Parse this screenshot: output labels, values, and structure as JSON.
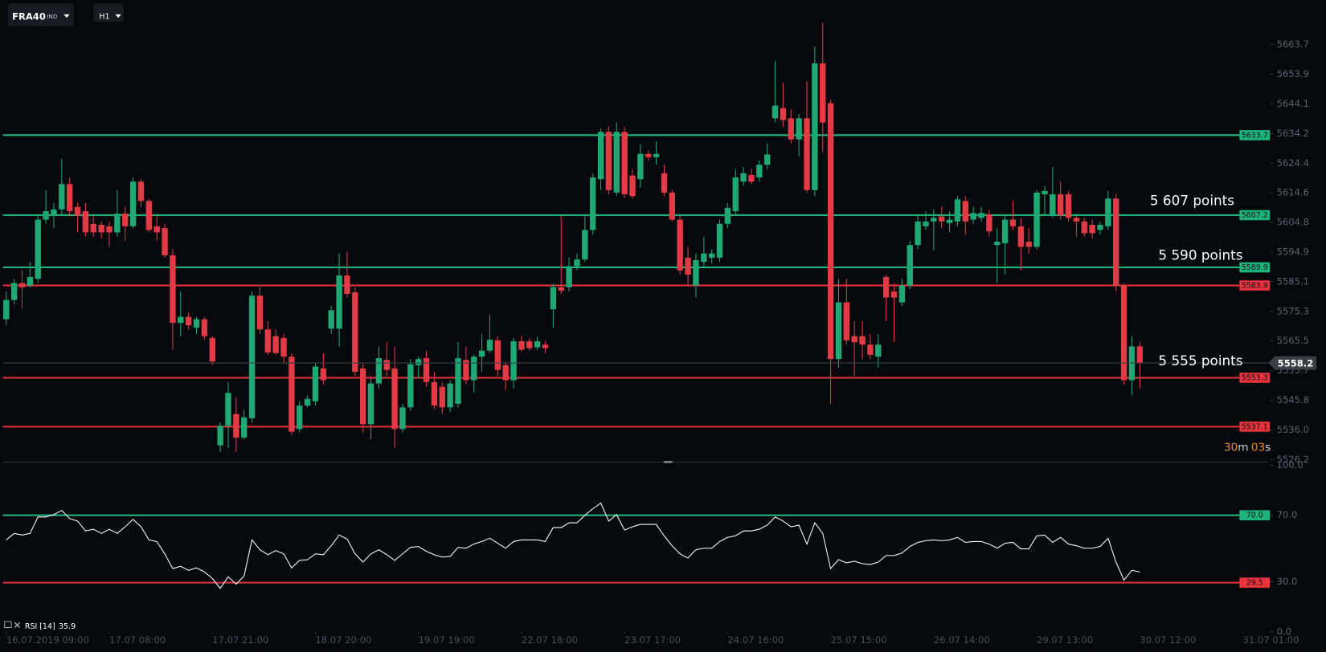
{
  "toolbar": {
    "symbol": "FRA40",
    "market": "IND",
    "timeframe": "H1"
  },
  "chart_data": [
    {
      "type": "candlestick",
      "up_color": "#1fa774",
      "down_color": "#e23b45",
      "xlim": [
        -0.75,
        159.2
      ],
      "xticks": [
        {
          "value": 0,
          "label": "16.07.2019 09:00"
        },
        {
          "value": 13,
          "label": "17.07 08:00"
        },
        {
          "value": 26,
          "label": "17.07 21:00"
        },
        {
          "value": 39,
          "label": "18.07 20:00"
        },
        {
          "value": 52,
          "label": "19.07 19:00"
        },
        {
          "value": 65,
          "label": "22.07 18:00"
        },
        {
          "value": 78,
          "label": "23.07 17:00"
        },
        {
          "value": 91,
          "label": "24.07 16:00"
        },
        {
          "value": 104,
          "label": "25.07 15:00"
        },
        {
          "value": 117,
          "label": "26.07 14:00"
        },
        {
          "value": 130,
          "label": "29.07 13:00"
        },
        {
          "value": 143,
          "label": "30.07 12:00"
        },
        {
          "value": 156,
          "label": "31.07 01:00"
        }
      ],
      "ylim": [
        5525.4,
        5678.5
      ],
      "yticks": [
        5663.7,
        5653.9,
        5644.1,
        5634.2,
        5624.4,
        5614.6,
        5604.8,
        5594.9,
        5585.1,
        5575.3,
        5565.5,
        5555.7,
        5545.8,
        {
          "value": 5536,
          "label": "5536.0"
        },
        5526.2
      ],
      "levels": [
        {
          "value": 5633.7,
          "color": "#1db37a"
        },
        {
          "value": 5607.2,
          "color": "#1db37a"
        },
        {
          "value": 5589.9,
          "color": "#1db37a"
        },
        {
          "value": 5583.9,
          "color": "#e8333d"
        },
        {
          "value": 5553.3,
          "color": "#e8333d"
        },
        {
          "value": 5537.1,
          "color": "#e8333d"
        }
      ],
      "annotations": [
        "5 607 points",
        "5 590 points",
        "5 555 points"
      ],
      "countdown": [
        "30",
        "m",
        "03",
        "s"
      ],
      "candles": [
        [
          5572.7,
          5581.9,
          5570.7,
          5579.1
        ],
        [
          5579.1,
          5586.1,
          5577.7,
          5584.7
        ],
        [
          5584.7,
          5588.9,
          5576.3,
          5583.3
        ],
        [
          5583.9,
          5591.7,
          5583.3,
          5586.7
        ],
        [
          5586.1,
          5607.1,
          5584.7,
          5605.7
        ],
        [
          5605.7,
          5615.5,
          5604.3,
          5608.5
        ],
        [
          5607.1,
          5611.3,
          5602.9,
          5609.1
        ],
        [
          5609.1,
          5625.9,
          5607.1,
          5617.5
        ],
        [
          5617.5,
          5619.7,
          5607.1,
          5608.5
        ],
        [
          5609.9,
          5611.3,
          5601.5,
          5607.1
        ],
        [
          5608.5,
          5611.3,
          5600.1,
          5601.5
        ],
        [
          5604.3,
          5607.1,
          5600.1,
          5601.5
        ],
        [
          5604.0,
          5605.1,
          5599.5,
          5601.5
        ],
        [
          5603.5,
          5605.1,
          5596.7,
          5601.5
        ],
        [
          5601.5,
          5615.5,
          5600.1,
          5607.7
        ],
        [
          5607.7,
          5609.9,
          5598.7,
          5603.5
        ],
        [
          5603.5,
          5619.7,
          5602.9,
          5618.3
        ],
        [
          5618.3,
          5619.1,
          5609.9,
          5611.9
        ],
        [
          5611.9,
          5612.7,
          5601.5,
          5602.3
        ],
        [
          5603.5,
          5607.1,
          5598.7,
          5601.5
        ],
        [
          5602.9,
          5604.3,
          5593.1,
          5593.9
        ],
        [
          5593.9,
          5595.9,
          5562.6,
          5571.5
        ],
        [
          5571.5,
          5581.9,
          5567.1,
          5573.5
        ],
        [
          5573.5,
          5574.9,
          5569.3,
          5570.7
        ],
        [
          5569.9,
          5573.5,
          5567.9,
          5572.7
        ],
        [
          5572.7,
          5573.5,
          5565.9,
          5567.1
        ],
        [
          5566.5,
          5567.1,
          5557.5,
          5558.7
        ],
        [
          5530.9,
          5538.5,
          5528.7,
          5537.4
        ],
        [
          5537.4,
          5551.9,
          5530.1,
          5548.3
        ],
        [
          5541.3,
          5546.9,
          5528.7,
          5533.5
        ],
        [
          5533.5,
          5542.7,
          5532.9,
          5540.2
        ],
        [
          5539.9,
          5581.9,
          5538.5,
          5580.5
        ],
        [
          5580.5,
          5583.3,
          5567.9,
          5569.3
        ],
        [
          5569.3,
          5572.1,
          5560.9,
          5561.7
        ],
        [
          5567.1,
          5569.3,
          5560.9,
          5561.5
        ],
        [
          5566.5,
          5567.9,
          5558.1,
          5560.3
        ],
        [
          5560.3,
          5561.5,
          5534.3,
          5535.4
        ],
        [
          5536.3,
          5545.5,
          5535.1,
          5544.1
        ],
        [
          5544.1,
          5547.5,
          5543.5,
          5546.3
        ],
        [
          5545.5,
          5558.1,
          5544.1,
          5557.0
        ],
        [
          5556.4,
          5561.5,
          5551.1,
          5552.5
        ],
        [
          5569.6,
          5577.1,
          5567.9,
          5575.7
        ],
        [
          5569.6,
          5594.5,
          5563.7,
          5587.2
        ],
        [
          5587.2,
          5595.1,
          5579.9,
          5581.1
        ],
        [
          5581.6,
          5583.3,
          5553.9,
          5555.3
        ],
        [
          5556.4,
          5558.1,
          5535.1,
          5537.9
        ],
        [
          5537.9,
          5553.9,
          5532.9,
          5551.4
        ],
        [
          5551.4,
          5563.7,
          5549.7,
          5559.8
        ],
        [
          5559.2,
          5565.1,
          5553.9,
          5555.9
        ],
        [
          5556.4,
          5563.7,
          5530.1,
          5536.3
        ],
        [
          5536.3,
          5544.7,
          5535.1,
          5543.5
        ],
        [
          5543.5,
          5559.5,
          5542.4,
          5557.8
        ],
        [
          5557.5,
          5560.3,
          5553.1,
          5559.5
        ],
        [
          5559.8,
          5562.3,
          5550.3,
          5551.9
        ],
        [
          5551.9,
          5555.3,
          5543.0,
          5544.1
        ],
        [
          5550.3,
          5551.9,
          5541.3,
          5543.5
        ],
        [
          5543.5,
          5552.5,
          5541.9,
          5551.4
        ],
        [
          5544.7,
          5565.1,
          5543.5,
          5559.8
        ],
        [
          5559.2,
          5563.7,
          5551.1,
          5552.5
        ],
        [
          5552.5,
          5560.9,
          5548.3,
          5560.3
        ],
        [
          5560.3,
          5567.9,
          5555.3,
          5562.3
        ],
        [
          5562.3,
          5574.3,
          5561.5,
          5565.9
        ],
        [
          5565.7,
          5567.1,
          5553.9,
          5555.9
        ],
        [
          5557.5,
          5558.7,
          5549.1,
          5552.5
        ],
        [
          5552.5,
          5566.5,
          5549.7,
          5565.4
        ],
        [
          5565.4,
          5567.1,
          5562.0,
          5562.6
        ],
        [
          5565.4,
          5566.5,
          5562.3,
          5563.1
        ],
        [
          5563.4,
          5567.1,
          5562.6,
          5565.4
        ],
        [
          5564.3,
          5565.4,
          5561.5,
          5563.1
        ],
        [
          5576.0,
          5584.4,
          5569.9,
          5583.3
        ],
        [
          5583.3,
          5607.1,
          5581.1,
          5582.2
        ],
        [
          5583.3,
          5593.1,
          5581.9,
          5590.3
        ],
        [
          5590.3,
          5594.5,
          5588.9,
          5592.5
        ],
        [
          5592.5,
          5607.1,
          5591.7,
          5602.3
        ],
        [
          5602.3,
          5621.1,
          5600.7,
          5619.7
        ],
        [
          5619.1,
          5635.9,
          5615.5,
          5634.8
        ],
        [
          5634.8,
          5636.5,
          5614.1,
          5615.5
        ],
        [
          5614.7,
          5637.9,
          5613.5,
          5634.8
        ],
        [
          5634.8,
          5636.5,
          5613.0,
          5614.1
        ],
        [
          5620.3,
          5622.5,
          5612.7,
          5613.5
        ],
        [
          5619.1,
          5630.9,
          5616.3,
          5627.5
        ],
        [
          5627.5,
          5628.7,
          5625.3,
          5626.4
        ],
        [
          5626.4,
          5631.5,
          5623.9,
          5627.5
        ],
        [
          5621.1,
          5623.9,
          5613.5,
          5614.7
        ],
        [
          5614.7,
          5615.5,
          5605.1,
          5605.7
        ],
        [
          5605.7,
          5607.1,
          5587.5,
          5588.9
        ],
        [
          5593.1,
          5596.7,
          5583.9,
          5587.5
        ],
        [
          5583.9,
          5594.5,
          5579.9,
          5592.3
        ],
        [
          5591.7,
          5600.1,
          5590.3,
          5594.5
        ],
        [
          5593.1,
          5595.9,
          5591.1,
          5594.5
        ],
        [
          5593.1,
          5605.7,
          5591.7,
          5604.3
        ],
        [
          5604.3,
          5611.3,
          5602.9,
          5609.6
        ],
        [
          5608.5,
          5622.5,
          5607.1,
          5619.7
        ],
        [
          5618.3,
          5623.1,
          5616.9,
          5621.1
        ],
        [
          5620.5,
          5622.5,
          5617.5,
          5618.3
        ],
        [
          5619.7,
          5625.3,
          5618.3,
          5623.9
        ],
        [
          5623.9,
          5630.9,
          5622.5,
          5627.3
        ],
        [
          5639.3,
          5658.3,
          5637.9,
          5643.5
        ],
        [
          5642.7,
          5651.1,
          5636.5,
          5638.7
        ],
        [
          5639.3,
          5642.1,
          5630.9,
          5632.3
        ],
        [
          5632.3,
          5640.7,
          5626.7,
          5639.3
        ],
        [
          5639.3,
          5651.6,
          5614.7,
          5615.5
        ],
        [
          5615.5,
          5663.1,
          5613.5,
          5657.5
        ],
        [
          5657.5,
          5670.9,
          5628.1,
          5637.9
        ],
        [
          5644.3,
          5645.5,
          5544.7,
          5559.5
        ],
        [
          5559.5,
          5586.1,
          5556.7,
          5578.3
        ],
        [
          5578.3,
          5586.1,
          5564.3,
          5565.7
        ],
        [
          5567.1,
          5572.1,
          5553.9,
          5565.1
        ],
        [
          5567.1,
          5572.1,
          5559.5,
          5564.3
        ],
        [
          5564.3,
          5567.9,
          5559.5,
          5560.9
        ],
        [
          5560.3,
          5567.9,
          5556.7,
          5564.3
        ],
        [
          5586.7,
          5587.5,
          5572.1,
          5579.9
        ],
        [
          5581.9,
          5584.7,
          5565.1,
          5579.9
        ],
        [
          5578.3,
          5586.1,
          5577.1,
          5583.9
        ],
        [
          5583.9,
          5598.7,
          5582.7,
          5597.3
        ],
        [
          5597.3,
          5607.1,
          5595.9,
          5605.1
        ],
        [
          5603.5,
          5608.5,
          5602.3,
          5605.1
        ],
        [
          5605.1,
          5609.1,
          5595.6,
          5606.3
        ],
        [
          5606.8,
          5609.9,
          5602.9,
          5605.1
        ],
        [
          5604.6,
          5608.5,
          5601.5,
          5605.7
        ],
        [
          5605.1,
          5613.5,
          5603.5,
          5612.4
        ],
        [
          5611.9,
          5613.5,
          5600.7,
          5605.1
        ],
        [
          5605.7,
          5609.9,
          5604.3,
          5607.9
        ],
        [
          5606.3,
          5609.9,
          5605.1,
          5607.9
        ],
        [
          5607.4,
          5609.1,
          5600.1,
          5601.8
        ],
        [
          5597.3,
          5602.9,
          5584.7,
          5598.4
        ],
        [
          5597.9,
          5607.1,
          5587.5,
          5605.7
        ],
        [
          5605.7,
          5611.9,
          5602.3,
          5603.5
        ],
        [
          5603.5,
          5606.3,
          5588.9,
          5596.7
        ],
        [
          5598.4,
          5602.9,
          5594.5,
          5596.7
        ],
        [
          5596.7,
          5615.5,
          5595.9,
          5614.7
        ],
        [
          5614.1,
          5616.9,
          5607.1,
          5615.2
        ],
        [
          5607.1,
          5623.1,
          5606.3,
          5614.1
        ],
        [
          5614.1,
          5618.3,
          5605.7,
          5607.1
        ],
        [
          5614.1,
          5615.2,
          5605.1,
          5606.3
        ],
        [
          5606.3,
          5607.1,
          5600.1,
          5605.1
        ],
        [
          5605.1,
          5606.3,
          5600.1,
          5601.2
        ],
        [
          5604.0,
          5605.7,
          5599.5,
          5601.2
        ],
        [
          5602.3,
          5605.1,
          5600.7,
          5604.0
        ],
        [
          5603.5,
          5615.2,
          5602.3,
          5612.7
        ],
        [
          5612.7,
          5614.1,
          5581.9,
          5583.9
        ],
        [
          5583.9,
          5584.7,
          5551.1,
          5552.5
        ],
        [
          5552.5,
          5567.1,
          5547.5,
          5563.7
        ],
        [
          5563.7,
          5565.1,
          5549.7,
          5558.2
        ]
      ]
    },
    {
      "type": "line",
      "indicator_label": "RSI [14]",
      "ylim": [
        0,
        100
      ],
      "yticks": [
        {
          "value": 100,
          "label": "100.0"
        },
        {
          "value": 70,
          "label": "70.0"
        },
        {
          "value": 30,
          "label": "30.0"
        },
        {
          "value": 0,
          "label": "0.0"
        }
      ],
      "levels": [
        {
          "value": 70,
          "label": "70.0",
          "color": "#1db37a"
        },
        {
          "value": 29.5,
          "label": "29.5",
          "color": "#e8333d"
        }
      ],
      "series": [
        {
          "name": "RSI",
          "color": "#ffffff",
          "values": [
            55.2,
            59.1,
            58.1,
            59.1,
            69.0,
            69.0,
            70.4,
            72.9,
            68.0,
            66.5,
            60.6,
            61.6,
            59.1,
            61.6,
            59.1,
            63.1,
            67.5,
            63.1,
            55.2,
            54.2,
            46.8,
            37.9,
            39.4,
            36.9,
            38.4,
            36.0,
            32.0,
            26.1,
            33.0,
            28.6,
            33.5,
            55.2,
            49.3,
            46.3,
            48.8,
            46.8,
            38.4,
            42.9,
            43.3,
            46.8,
            46.3,
            51.7,
            58.1,
            55.7,
            46.8,
            41.9,
            46.8,
            49.3,
            46.3,
            42.9,
            46.8,
            50.7,
            51.2,
            48.3,
            46.3,
            44.8,
            45.3,
            50.7,
            50.2,
            52.7,
            54.2,
            56.2,
            53.2,
            50.2,
            54.2,
            55.2,
            55.2,
            55.2,
            54.2,
            62.6,
            62.6,
            65.5,
            65.5,
            70.0,
            73.9,
            77.3,
            66.5,
            70.4,
            61.1,
            63.1,
            64.5,
            64.5,
            64.5,
            57.6,
            51.7,
            46.8,
            44.3,
            49.3,
            50.2,
            50.2,
            54.2,
            56.7,
            57.6,
            60.6,
            60.6,
            61.6,
            64.0,
            69.0,
            66.5,
            63.1,
            64.0,
            52.7,
            65.5,
            59.1,
            37.9,
            43.3,
            41.4,
            42.4,
            40.9,
            40.4,
            41.9,
            45.8,
            45.8,
            47.3,
            51.2,
            53.7,
            54.7,
            55.2,
            54.7,
            55.2,
            56.7,
            53.7,
            54.2,
            54.2,
            52.7,
            50.2,
            53.2,
            53.7,
            49.8,
            49.8,
            57.6,
            58.1,
            53.7,
            56.7,
            52.7,
            51.7,
            50.2,
            50.2,
            51.2,
            56.2,
            41.9,
            31.0,
            36.9,
            35.9
          ]
        }
      ]
    }
  ]
}
